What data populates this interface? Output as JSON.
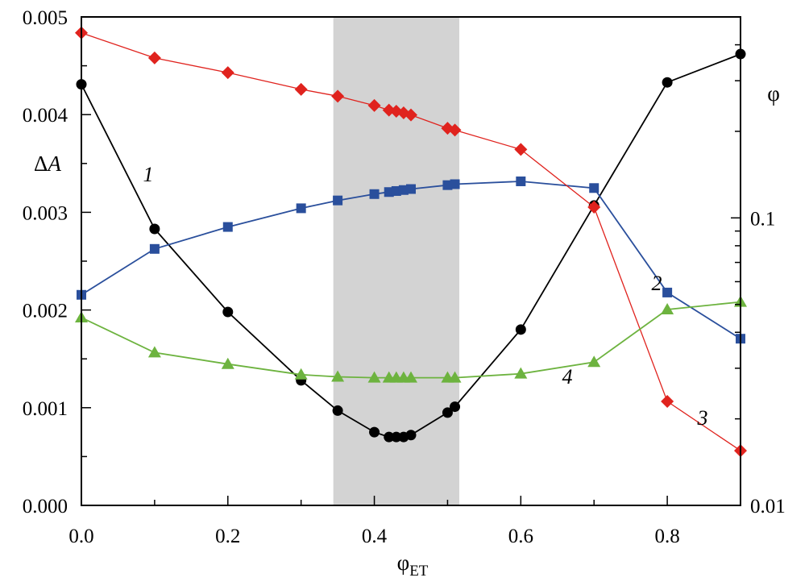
{
  "chart_data": {
    "type": "line",
    "xlabel_main": "φ",
    "xlabel_sub": "ET",
    "ylabel_left_prefix": "Δ",
    "ylabel_left_var": "A",
    "ylabel_right": "φ",
    "xlim": [
      0,
      0.9
    ],
    "ylim_left": [
      0,
      0.005
    ],
    "ylim_right": [
      0.01,
      0.5
    ],
    "right_axis_scale": "log",
    "grid": false,
    "highlight_band": {
      "x": [
        0.344,
        0.516
      ],
      "color": "#d3d3d3"
    },
    "x_ticks": [
      "0.0",
      "0.2",
      "0.4",
      "0.6",
      "0.8"
    ],
    "x_tick_values": [
      0,
      0.2,
      0.4,
      0.6,
      0.8
    ],
    "y_left_ticks": [
      "0.000",
      "0.001",
      "0.002",
      "0.003",
      "0.004",
      "0.005"
    ],
    "y_left_tick_values": [
      0,
      0.001,
      0.002,
      0.003,
      0.004,
      0.005
    ],
    "y_right_ticks": [
      "0.01",
      "0.1"
    ],
    "y_right_tick_values": [
      0.01,
      0.1
    ],
    "series": [
      {
        "name": "1",
        "axis": "left",
        "color": "#000000",
        "marker": "circle",
        "x": [
          0.0,
          0.1,
          0.2,
          0.3,
          0.35,
          0.4,
          0.42,
          0.43,
          0.44,
          0.45,
          0.5,
          0.51,
          0.6,
          0.7,
          0.8,
          0.9
        ],
        "y": [
          0.00431,
          0.00283,
          0.00198,
          0.00128,
          0.00097,
          0.00075,
          0.0007,
          0.0007,
          0.0007,
          0.00072,
          0.00095,
          0.00101,
          0.0018,
          0.00307,
          0.00433,
          0.00462
        ]
      },
      {
        "name": "2",
        "axis": "right",
        "color": "#2a4f9c",
        "marker": "square",
        "x": [
          0.0,
          0.1,
          0.2,
          0.3,
          0.35,
          0.4,
          0.42,
          0.43,
          0.44,
          0.45,
          0.5,
          0.51,
          0.6,
          0.7,
          0.8,
          0.9
        ],
        "y": [
          0.054,
          0.078,
          0.093,
          0.108,
          0.115,
          0.121,
          0.123,
          0.124,
          0.125,
          0.126,
          0.13,
          0.131,
          0.134,
          0.127,
          0.055,
          0.038
        ]
      },
      {
        "name": "3",
        "axis": "right",
        "color": "#e0231e",
        "marker": "diamond",
        "x": [
          0.0,
          0.1,
          0.2,
          0.3,
          0.35,
          0.4,
          0.42,
          0.43,
          0.44,
          0.45,
          0.5,
          0.51,
          0.6,
          0.7,
          0.8,
          0.9
        ],
        "y": [
          0.44,
          0.36,
          0.32,
          0.28,
          0.265,
          0.246,
          0.237,
          0.235,
          0.232,
          0.228,
          0.205,
          0.202,
          0.173,
          0.109,
          0.023,
          0.0155
        ]
      },
      {
        "name": "4",
        "axis": "right",
        "color": "#6db33f",
        "marker": "triangle",
        "x": [
          0.0,
          0.1,
          0.2,
          0.3,
          0.35,
          0.4,
          0.42,
          0.43,
          0.44,
          0.45,
          0.5,
          0.51,
          0.6,
          0.7,
          0.8,
          0.9
        ],
        "y": [
          0.045,
          0.034,
          0.031,
          0.0285,
          0.028,
          0.0278,
          0.0278,
          0.0278,
          0.0278,
          0.0278,
          0.0278,
          0.0278,
          0.0287,
          0.0315,
          0.048,
          0.051
        ]
      }
    ]
  }
}
